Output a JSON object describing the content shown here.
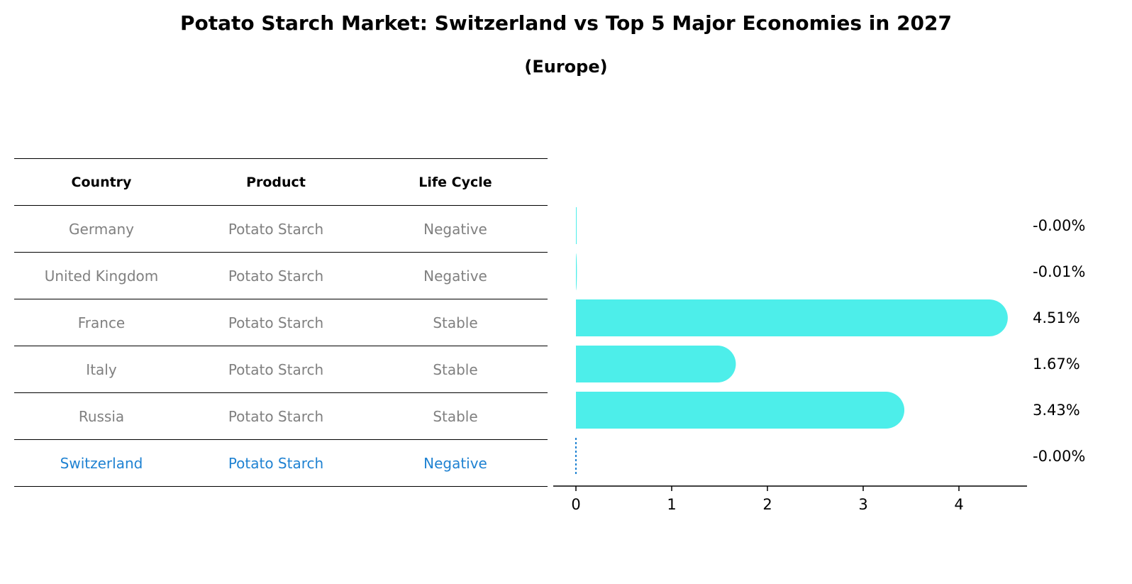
{
  "header": {
    "title": "Potato Starch Market: Switzerland vs Top 5 Major Economies in 2027",
    "subtitle": "(Europe)"
  },
  "table": {
    "columns": [
      "Country",
      "Product",
      "Life Cycle"
    ],
    "rows": [
      {
        "country": "Germany",
        "product": "Potato Starch",
        "life_cycle": "Negative"
      },
      {
        "country": "United Kingdom",
        "product": "Potato Starch",
        "life_cycle": "Negative"
      },
      {
        "country": "France",
        "product": "Potato Starch",
        "life_cycle": "Stable"
      },
      {
        "country": "Italy",
        "product": "Potato Starch",
        "life_cycle": "Stable"
      },
      {
        "country": "Russia",
        "product": "Potato Starch",
        "life_cycle": "Stable"
      },
      {
        "country": "Switzerland",
        "product": "Potato Starch",
        "life_cycle": "Negative"
      }
    ]
  },
  "colors": {
    "bar": "#4deeea",
    "highlight": "#1f82d2",
    "muted_text": "#808080",
    "axis": "#000000"
  },
  "chart_data": {
    "type": "bar",
    "orientation": "horizontal",
    "title": "Potato Starch Market: Switzerland vs Top 5 Major Economies in 2027",
    "subtitle": "(Europe)",
    "categories": [
      "Germany",
      "United Kingdom",
      "France",
      "Italy",
      "Russia",
      "Switzerland"
    ],
    "values": [
      -0.0,
      -0.01,
      4.51,
      1.67,
      3.43,
      -0.0
    ],
    "value_labels": [
      "-0.00%",
      "-0.01%",
      "4.51%",
      "1.67%",
      "3.43%",
      "-0.00%"
    ],
    "highlight_category": "Switzerland",
    "xticks": [
      "0",
      "1",
      "2",
      "3",
      "4"
    ],
    "xlim": [
      -0.24,
      4.74
    ],
    "xlabel": "",
    "ylabel": "",
    "grid": false,
    "legend": "none"
  }
}
